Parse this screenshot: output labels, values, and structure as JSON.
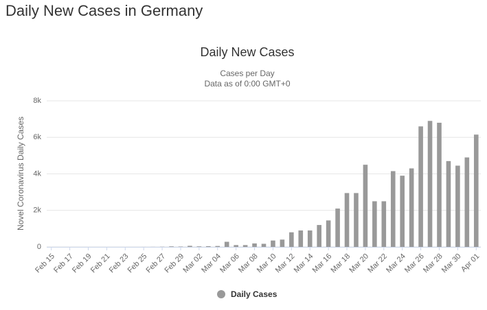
{
  "page_title": "Daily New Cases in Germany",
  "chart_data": {
    "type": "bar",
    "title": "Daily New Cases",
    "subtitle": [
      "Cases per Day",
      "Data as of 0:00 GMT+0"
    ],
    "y_label": "Novel Coronavirus Daily Cases",
    "categories": [
      "Feb 15",
      null,
      "Feb 17",
      null,
      "Feb 19",
      null,
      "Feb 21",
      null,
      "Feb 23",
      null,
      "Feb 25",
      null,
      "Feb 27",
      null,
      "Feb 29",
      null,
      "Mar 02",
      null,
      "Mar 04",
      null,
      "Mar 06",
      null,
      "Mar 08",
      null,
      "Mar 10",
      null,
      "Mar 12",
      null,
      "Mar 14",
      null,
      "Mar 16",
      null,
      "Mar 18",
      null,
      "Mar 20",
      null,
      "Mar 22",
      null,
      "Mar 24",
      null,
      "Mar 26",
      null,
      "Mar 28",
      null,
      "Mar 30",
      null,
      "Apr 01"
    ],
    "series": [
      {
        "name": "Daily Cases",
        "color": "#999999",
        "values": [
          0,
          0,
          0,
          0,
          0,
          0,
          0,
          0,
          0,
          0,
          2,
          4,
          10,
          30,
          20,
          60,
          30,
          40,
          50,
          280,
          100,
          100,
          190,
          170,
          350,
          400,
          800,
          900,
          900,
          1200,
          1450,
          2100,
          2950,
          2950,
          4500,
          2500,
          2500,
          4150,
          3900,
          4300,
          6600,
          6900,
          6800,
          4700,
          4450,
          4900,
          6150
        ]
      }
    ],
    "ylim": [
      0,
      8000
    ],
    "yticks": [
      0,
      {
        "value": 2000,
        "label": "2k"
      },
      {
        "value": 4000,
        "label": "4k"
      },
      {
        "value": 6000,
        "label": "6k"
      },
      {
        "value": 8000,
        "label": "8k"
      }
    ],
    "grid": true
  }
}
